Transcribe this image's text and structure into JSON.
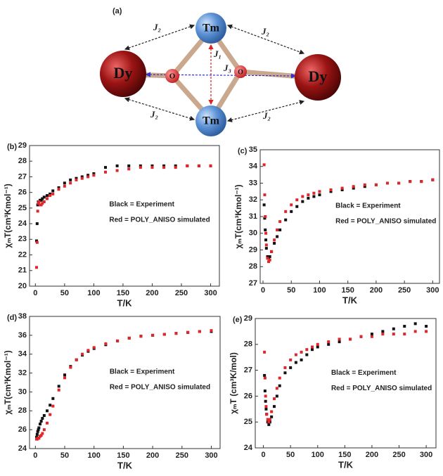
{
  "diagram": {
    "panel": "(a)",
    "atoms": [
      "Dy",
      "Tm",
      "Dy",
      "Tm",
      "O",
      "O"
    ],
    "couplings": [
      "J₂",
      "J₂",
      "J₂",
      "J₂",
      "J₁",
      "J₃"
    ]
  },
  "chart_data": [
    {
      "type": "scatter",
      "title": "(b)",
      "xlabel": "T/K",
      "ylabel": "χₘT(cm³Kmol⁻¹)",
      "legend": "center",
      "x": [
        2,
        3,
        4,
        5,
        6,
        8,
        10,
        12,
        15,
        20,
        25,
        30,
        40,
        50,
        60,
        70,
        80,
        90,
        100,
        120,
        140,
        160,
        180,
        200,
        220,
        240,
        260,
        280,
        300
      ],
      "series": [
        {
          "name": "Black = Experiment",
          "color": "#111111",
          "values": [
            22.9,
            24,
            25.2,
            25.4,
            25.4,
            25.5,
            25.5,
            25.6,
            25.7,
            25.8,
            25.9,
            26.1,
            26.3,
            26.6,
            26.8,
            26.9,
            27.0,
            27.1,
            27.2,
            27.6,
            27.7,
            27.7,
            27.7,
            27.7,
            27.7,
            27.7,
            27.7,
            27.7,
            27.7
          ]
        },
        {
          "name": "Red = POLY_ANISO simulated",
          "color": "#e0262b",
          "values": [
            21.2,
            22.8,
            24.8,
            25.3,
            25.4,
            25.2,
            25.2,
            25.3,
            25.4,
            25.6,
            25.8,
            25.9,
            26.2,
            26.4,
            26.6,
            26.8,
            26.9,
            27.0,
            27.1,
            27.3,
            27.4,
            27.5,
            27.6,
            27.6,
            27.6,
            27.6,
            27.7,
            27.7,
            27.7
          ]
        }
      ],
      "xlim": [
        -10,
        315
      ],
      "xticks": [
        0,
        50,
        100,
        150,
        200,
        250,
        300
      ],
      "ylim": [
        20,
        29
      ],
      "yticks": [
        20,
        21,
        22,
        23,
        24,
        25,
        26,
        27,
        28,
        29
      ]
    },
    {
      "type": "scatter",
      "title": "(c)",
      "xlabel": "T/K",
      "ylabel": "χₘT(cm³Kmol⁻¹)",
      "legend": "center",
      "x": [
        2,
        3,
        4,
        5,
        6,
        8,
        10,
        12,
        15,
        20,
        25,
        30,
        40,
        50,
        60,
        70,
        80,
        90,
        100,
        120,
        140,
        160,
        180,
        200,
        220,
        240,
        260,
        280,
        300
      ],
      "series": [
        {
          "name": "Black = Experiment",
          "color": "#111111",
          "values": [
            31.7,
            30.9,
            30.2,
            29.6,
            29.1,
            28.6,
            28.5,
            28.6,
            28.9,
            29.4,
            29.8,
            30.2,
            30.8,
            31.3,
            31.6,
            31.9,
            32.1,
            32.2,
            32.3,
            32.5,
            32.6,
            32.7,
            32.8,
            32.9,
            33.0,
            33.0,
            33.1,
            33.1,
            33.2
          ]
        },
        {
          "name": "Red = POLY_ANISO simulated",
          "color": "#e0262b",
          "values": [
            34.1,
            32.3,
            31.0,
            30.0,
            29.3,
            28.5,
            28.3,
            28.4,
            28.9,
            29.6,
            30.2,
            30.7,
            31.3,
            31.7,
            32.0,
            32.2,
            32.3,
            32.4,
            32.5,
            32.6,
            32.7,
            32.8,
            32.9,
            32.9,
            33.0,
            33.0,
            33.1,
            33.1,
            33.2
          ]
        }
      ],
      "xlim": [
        -5,
        312
      ],
      "xticks": [
        0,
        50,
        100,
        150,
        200,
        250,
        300
      ],
      "ylim": [
        27,
        35
      ],
      "yticks": [
        27,
        28,
        29,
        30,
        31,
        32,
        33,
        34,
        35
      ]
    },
    {
      "type": "scatter",
      "title": "(d)",
      "xlabel": "T/K",
      "ylabel": "χₘT(cm³Kmol⁻¹)",
      "legend": "center",
      "x": [
        2,
        3,
        4,
        5,
        6,
        8,
        10,
        12,
        15,
        20,
        25,
        30,
        40,
        50,
        60,
        70,
        80,
        90,
        100,
        120,
        140,
        160,
        180,
        200,
        220,
        240,
        260,
        280,
        300
      ],
      "series": [
        {
          "name": "Black = Experiment",
          "color": "#111111",
          "values": [
            25.2,
            25.5,
            25.8,
            26.0,
            26.2,
            26.6,
            26.9,
            27.2,
            27.5,
            28.0,
            28.6,
            29.3,
            30.6,
            31.8,
            32.7,
            33.4,
            33.9,
            34.3,
            34.6,
            35.0,
            35.4,
            35.7,
            35.9,
            36.0,
            36.1,
            36.2,
            36.3,
            36.4,
            36.4
          ]
        },
        {
          "name": "Red = POLY_ANISO simulated",
          "color": "#e0262b",
          "values": [
            25.0,
            25.0,
            25.1,
            25.1,
            25.1,
            25.3,
            25.4,
            25.6,
            26.0,
            26.7,
            27.6,
            28.5,
            30.2,
            31.5,
            32.6,
            33.4,
            34.0,
            34.4,
            34.7,
            35.1,
            35.4,
            35.7,
            35.9,
            36.0,
            36.1,
            36.2,
            36.3,
            36.4,
            36.5
          ]
        }
      ],
      "xlim": [
        -10,
        315
      ],
      "xticks": [
        0,
        50,
        100,
        150,
        200,
        250,
        300
      ],
      "ylim": [
        24,
        38
      ],
      "yticks": [
        24,
        26,
        28,
        30,
        32,
        34,
        36,
        38
      ]
    },
    {
      "type": "scatter",
      "title": "(e)",
      "xlabel": "T/K",
      "ylabel": "χₘT (cm³K/mol)",
      "legend": "center",
      "x": [
        2,
        3,
        4,
        5,
        6,
        8,
        10,
        12,
        15,
        20,
        25,
        30,
        40,
        50,
        60,
        70,
        80,
        90,
        100,
        120,
        140,
        160,
        180,
        200,
        220,
        240,
        260,
        280,
        300
      ],
      "series": [
        {
          "name": "Black = Experiment",
          "color": "#111111",
          "values": [
            26.8,
            26.2,
            25.8,
            25.5,
            25.3,
            25.0,
            24.9,
            25.0,
            25.2,
            25.6,
            26.0,
            26.4,
            26.9,
            27.1,
            27.3,
            27.4,
            27.6,
            27.8,
            27.9,
            28.0,
            28.1,
            28.2,
            28.3,
            28.4,
            28.5,
            28.6,
            28.7,
            28.8,
            28.7
          ]
        },
        {
          "name": "Red = POLY_ANISO simulated",
          "color": "#e0262b",
          "values": [
            27.7,
            26.7,
            26.0,
            25.6,
            25.3,
            25.1,
            25.0,
            25.1,
            25.4,
            25.9,
            26.3,
            26.7,
            27.1,
            27.4,
            27.6,
            27.7,
            27.8,
            27.9,
            28.0,
            28.1,
            28.2,
            28.2,
            28.3,
            28.3,
            28.4,
            28.4,
            28.4,
            28.5,
            28.5
          ]
        }
      ],
      "xlim": [
        -15,
        318
      ],
      "xticks": [
        0,
        50,
        100,
        150,
        200,
        250,
        300
      ],
      "ylim": [
        24,
        29
      ],
      "yticks": [
        24,
        25,
        26,
        27,
        28,
        29
      ]
    }
  ]
}
